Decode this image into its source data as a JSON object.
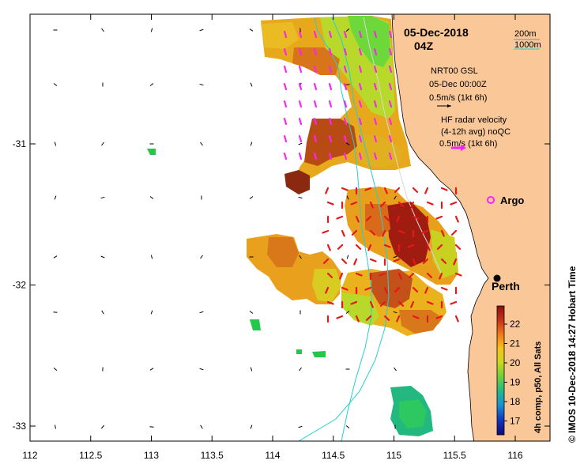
{
  "title": {
    "date": "05-Dec-2018",
    "time": "04Z"
  },
  "bathymetry_legend": {
    "contour_200": "200m",
    "contour_1000": "1000m",
    "color_200": "#7a7a7a",
    "color_1000": "#25d0d0"
  },
  "wind_legend": {
    "model": "NRT00 GSL",
    "valid": "05-Dec 00:00Z",
    "scale": "0.5m/s (1kt 6h)"
  },
  "radar_legend": {
    "line1": "HF radar velocity",
    "line2": "(4-12h avg) noQC",
    "scale": "0.5m/s (1kt 6h)",
    "arrow_color": "#ff20ff"
  },
  "argo": {
    "label": "Argo",
    "color": "#ff20ff"
  },
  "city": {
    "label": "Perth",
    "lon": 115.86,
    "lat": -31.95
  },
  "axes": {
    "x_ticks": [
      {
        "value": 112,
        "label": "112"
      },
      {
        "value": 112.5,
        "label": "112.5"
      },
      {
        "value": 113,
        "label": "113"
      },
      {
        "value": 113.5,
        "label": "113.5"
      },
      {
        "value": 114,
        "label": "114"
      },
      {
        "value": 114.5,
        "label": "114.5"
      },
      {
        "value": 115,
        "label": "115"
      },
      {
        "value": 115.5,
        "label": "115.5"
      },
      {
        "value": 116,
        "label": "116"
      }
    ],
    "y_ticks": [
      {
        "value": -31,
        "label": "-31"
      },
      {
        "value": -32,
        "label": "-32"
      },
      {
        "value": -33,
        "label": "-33"
      }
    ]
  },
  "colorbar": {
    "label": "4h comp, p50, All Sats",
    "ticks": [
      "22",
      "21",
      "20",
      "19",
      "18",
      "17"
    ],
    "stops": [
      "#8b1010",
      "#c8301a",
      "#f07a18",
      "#f5c21a",
      "#c8d820",
      "#6cd03a",
      "#22b88a",
      "#1890d8",
      "#1038c0",
      "#100880"
    ]
  },
  "credit": "© IMOS 10-Dec-2018 14:27 Hobart Time",
  "colors": {
    "land": "#fac898",
    "sst_hot": "#9a1a12",
    "sst_warm": "#d86a1a",
    "sst_mid": "#eaa21a",
    "sst_yellow": "#e8d020",
    "sst_green": "#8ed82e",
    "sst_cool": "#22c84a",
    "radar_red": "#e41818"
  }
}
